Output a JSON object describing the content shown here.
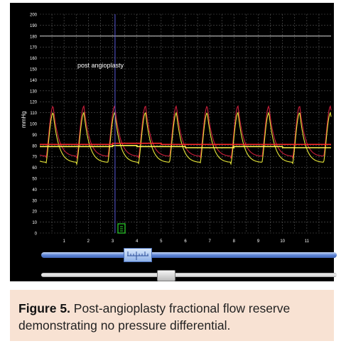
{
  "chart_data": {
    "type": "line",
    "ylabel": "mmHg",
    "annotation": "post angioplasty",
    "ylim": [
      0,
      200
    ],
    "xlim": [
      0,
      12
    ],
    "y_ticks": [
      0,
      10,
      20,
      30,
      40,
      50,
      60,
      70,
      80,
      90,
      100,
      110,
      120,
      130,
      140,
      150,
      160,
      170,
      180,
      190,
      200
    ],
    "x_ticks": [
      1,
      2,
      3,
      4,
      5,
      6,
      7,
      8,
      9,
      10,
      11
    ],
    "grid": true,
    "threshold_line": 180,
    "cursor_x": 3.1,
    "beat_period": 1.27,
    "first_beat_peak": 0.55,
    "series": [
      {
        "color": "#cc1f3c",
        "kind": "pulsatile",
        "peak": 116,
        "trough": 68,
        "diastolic_end": 72
      },
      {
        "color": "#e8e83a",
        "kind": "pulsatile",
        "peak": 110,
        "trough": 63,
        "diastolic_end": 66
      },
      {
        "color": "#ff2a2a",
        "kind": "mean",
        "values": [
          81,
          81,
          81,
          82,
          82,
          81,
          81,
          81,
          81,
          81,
          81,
          81
        ]
      },
      {
        "color": "#f7f04a",
        "kind": "mean",
        "values": [
          79,
          79,
          79,
          80,
          79,
          79,
          78,
          78,
          79,
          79,
          78,
          78
        ]
      }
    ]
  },
  "caption": {
    "label": "Figure 5.",
    "text": " Post-angioplasty fractional flow reserve demonstrating no pressure differential."
  },
  "colors": {
    "background": "#000000",
    "grid": "#5a5a5a",
    "axis_text": "#ffffff",
    "threshold": "#d8d8d8",
    "cursor": "#5a5ad8",
    "marker": "#2bd62b",
    "caption_bg": "#f8e2d3"
  },
  "controls": {
    "ruler_slider_icon": "ruler-icon",
    "scroll_slider_icon": "scroll-thumb"
  }
}
